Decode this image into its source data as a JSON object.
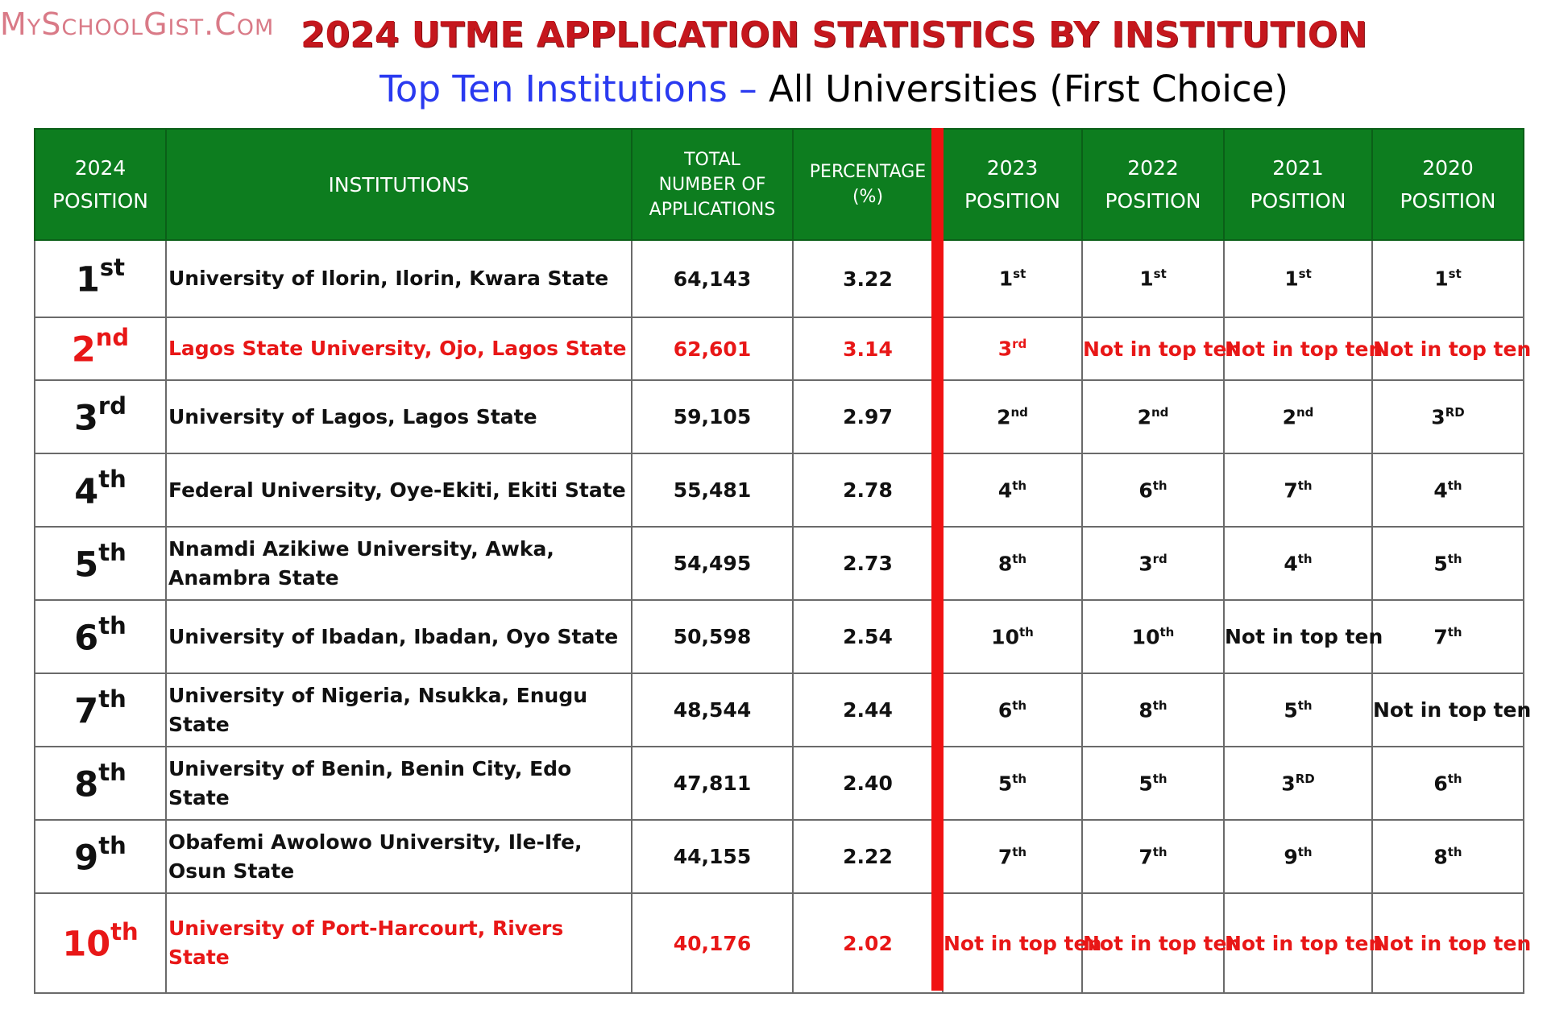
{
  "brand": "MySchoolGist.Com",
  "title": "2024 UTME APPLICATION STATISTICS BY INSTITUTION",
  "subtitle": {
    "blue": "Top Ten Institutions –",
    "black": "All Universities (First Choice)"
  },
  "headers": {
    "pos2024": [
      "2024",
      "POSITION"
    ],
    "institutions": "INSTITUTIONS",
    "total": [
      "TOTAL",
      "NUMBER OF",
      "APPLICATIONS"
    ],
    "percentage": [
      "PERCENTAGE",
      "(%)"
    ],
    "pos2023": [
      "2023",
      "POSITION"
    ],
    "pos2022": [
      "2022",
      "POSITION"
    ],
    "pos2021": [
      "2021",
      "POSITION"
    ],
    "pos2020": [
      "2020",
      "POSITION"
    ]
  },
  "highlight_color": "#e81717",
  "header_bg_color": "#0d7d1f",
  "rows": [
    {
      "pos_num": "1",
      "pos_suf": "st",
      "institution": "University of Ilorin, Ilorin, Kwara State",
      "applications": "64,143",
      "percentage": "3.22",
      "p2023_num": "1",
      "p2023_suf": "st",
      "p2022_num": "1",
      "p2022_suf": "st",
      "p2021_num": "1",
      "p2021_suf": "st",
      "p2020_num": "1",
      "p2020_suf": "st"
    },
    {
      "pos_num": "2",
      "pos_suf": "nd",
      "institution": "Lagos State University, Ojo, Lagos State",
      "applications": "62,601",
      "percentage": "3.14",
      "p2023_num": "3",
      "p2023_suf": "rd",
      "p2022_text": "Not in top ten",
      "p2021_text": "Not in top ten",
      "p2020_text": "Not in top ten"
    },
    {
      "pos_num": "3",
      "pos_suf": "rd",
      "institution": "University of Lagos, Lagos State",
      "applications": "59,105",
      "percentage": "2.97",
      "p2023_num": "2",
      "p2023_suf": "nd",
      "p2022_num": "2",
      "p2022_suf": "nd",
      "p2021_num": "2",
      "p2021_suf": "nd",
      "p2020_num": "3",
      "p2020_suf": "RD"
    },
    {
      "pos_num": "4",
      "pos_suf": "th",
      "institution": "Federal University, Oye-Ekiti, Ekiti State",
      "applications": "55,481",
      "percentage": "2.78",
      "p2023_num": "4",
      "p2023_suf": "th",
      "p2022_num": "6",
      "p2022_suf": "th",
      "p2021_num": "7",
      "p2021_suf": "th",
      "p2020_num": "4",
      "p2020_suf": "th"
    },
    {
      "pos_num": "5",
      "pos_suf": "th",
      "institution": "Nnamdi Azikiwe University, Awka, Anambra State",
      "applications": "54,495",
      "percentage": "2.73",
      "p2023_num": "8",
      "p2023_suf": "th",
      "p2022_num": "3",
      "p2022_suf": "rd",
      "p2021_num": "4",
      "p2021_suf": "th",
      "p2020_num": "5",
      "p2020_suf": "th"
    },
    {
      "pos_num": "6",
      "pos_suf": "th",
      "institution": "University of Ibadan, Ibadan, Oyo State",
      "applications": "50,598",
      "percentage": "2.54",
      "p2023_num": "10",
      "p2023_suf": "th",
      "p2022_num": "10",
      "p2022_suf": "th",
      "p2021_text": "Not in top ten",
      "p2020_num": "7",
      "p2020_suf": "th"
    },
    {
      "pos_num": "7",
      "pos_suf": "th",
      "institution": "University of Nigeria, Nsukka, Enugu State",
      "applications": "48,544",
      "percentage": "2.44",
      "p2023_num": "6",
      "p2023_suf": "th",
      "p2022_num": "8",
      "p2022_suf": "th",
      "p2021_num": "5",
      "p2021_suf": "th",
      "p2020_text": "Not in top ten"
    },
    {
      "pos_num": "8",
      "pos_suf": "th",
      "institution": "University of Benin, Benin City, Edo State",
      "applications": "47,811",
      "percentage": "2.40",
      "p2023_num": "5",
      "p2023_suf": "th",
      "p2022_num": "5",
      "p2022_suf": "th",
      "p2021_num": "3",
      "p2021_suf": "RD",
      "p2020_num": "6",
      "p2020_suf": "th"
    },
    {
      "pos_num": "9",
      "pos_suf": "th",
      "institution": "Obafemi Awolowo University, Ile-Ife, Osun State",
      "applications": "44,155",
      "percentage": "2.22",
      "p2023_num": "7",
      "p2023_suf": "th",
      "p2022_num": "7",
      "p2022_suf": "th",
      "p2021_num": "9",
      "p2021_suf": "th",
      "p2020_num": "8",
      "p2020_suf": "th"
    },
    {
      "pos_num": "10",
      "pos_suf": "th",
      "institution": "University of Port-Harcourt, Rivers State",
      "applications": "40,176",
      "percentage": "2.02",
      "p2023_text": "Not in top ten",
      "p2022_text": "Not in top ten",
      "p2021_text": "Not in top ten",
      "p2020_text": "Not in top ten"
    }
  ]
}
